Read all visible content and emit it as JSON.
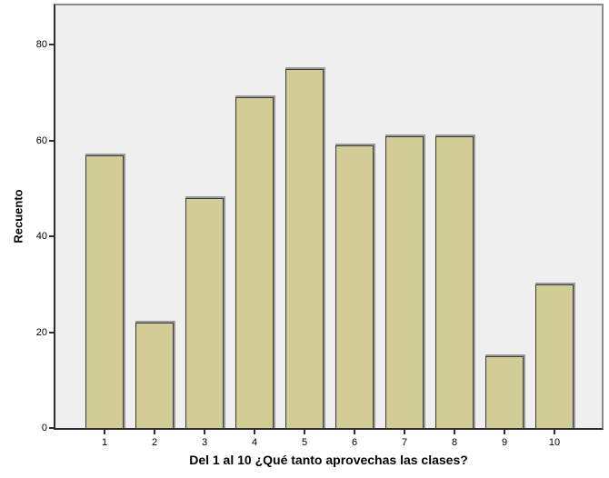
{
  "chart_data": {
    "type": "bar",
    "title": "",
    "xlabel": "Del 1 al 10 ¿Qué tanto aprovechas las clases?",
    "ylabel": "Recuento",
    "categories": [
      "1",
      "2",
      "3",
      "4",
      "5",
      "6",
      "7",
      "8",
      "9",
      "10"
    ],
    "values": [
      57,
      22,
      48,
      69,
      75,
      59,
      61,
      61,
      15,
      30
    ],
    "yticks": [
      0,
      20,
      40,
      60,
      80
    ],
    "ylim": [
      0,
      88
    ],
    "grid": false,
    "legend": false
  },
  "colors": {
    "bar_fill": "#d2cd96",
    "bar_border": "#3a3a3a",
    "bar_shadow": "#9a9a9a",
    "plot_bg": "#efefef",
    "frame_gray": "#8a8a8a",
    "axis_color": "#2e2e2e",
    "text": "#000000",
    "page_bg": "#ffffff"
  }
}
